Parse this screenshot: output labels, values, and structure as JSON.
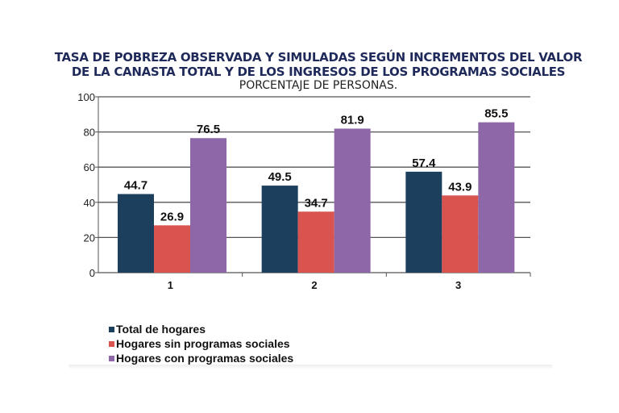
{
  "chart_data": {
    "type": "bar",
    "title_line1": "TASA DE POBREZA OBSERVADA Y SIMULADAS SEGÚN INCREMENTOS DEL VALOR",
    "title_line2": "DE LA CANASTA TOTAL Y DE LOS INGRESOS DE LOS PROGRAMAS SOCIALES",
    "subtitle": "PORCENTAJE DE PERSONAS.",
    "categories": [
      "1",
      "2",
      "3"
    ],
    "series": [
      {
        "name": "Total de hogares",
        "values": [
          44.7,
          49.5,
          57.4
        ],
        "color": "#1d3f5e"
      },
      {
        "name": "Hogares sin programas sociales",
        "values": [
          26.9,
          34.7,
          43.9
        ],
        "color": "#d9534f"
      },
      {
        "name": "Hogares con programas sociales",
        "values": [
          76.5,
          81.9,
          85.5
        ],
        "color": "#8d67a8"
      }
    ],
    "ylim": [
      0,
      100
    ],
    "yticks": [
      "0",
      "20",
      "40",
      "60",
      "80",
      "100"
    ],
    "grid": true,
    "legend_position": "bottom-left"
  }
}
